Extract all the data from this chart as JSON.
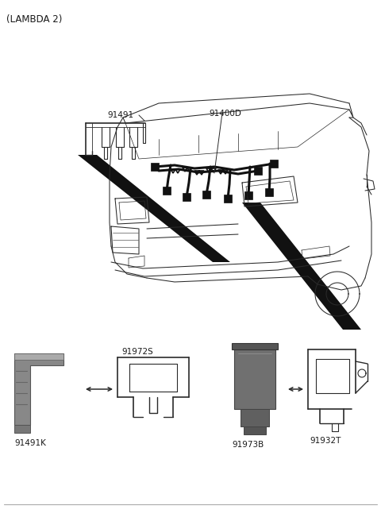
{
  "title": "(LAMBDA 2)",
  "bg_color": "#ffffff",
  "text_color": "#1a1a1a",
  "figsize": [
    4.8,
    6.56
  ],
  "dpi": 100,
  "label_91491": "91491",
  "label_91400D": "91400D",
  "label_91491K": "91491K",
  "label_91972S": "91972S",
  "label_91973B": "91973B",
  "label_91932T": "91932T"
}
